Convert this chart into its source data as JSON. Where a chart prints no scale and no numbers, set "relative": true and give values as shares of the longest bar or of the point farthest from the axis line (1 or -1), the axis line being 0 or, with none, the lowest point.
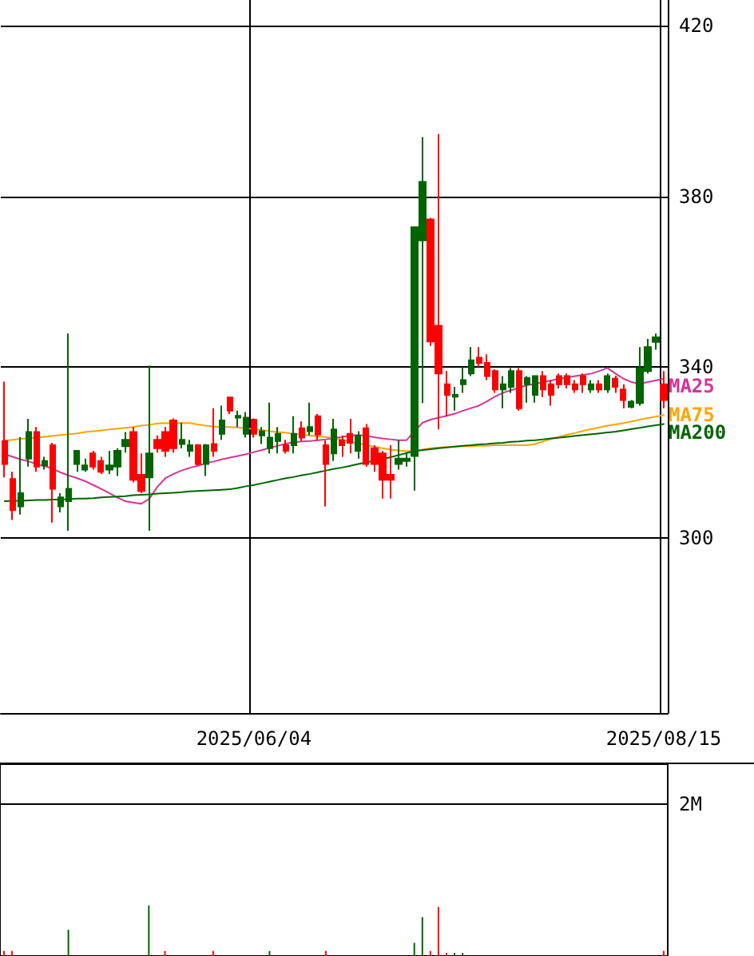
{
  "chart_data": [
    {
      "type": "candlestick",
      "categories": [
        null,
        null,
        null,
        null,
        null,
        null,
        null,
        null,
        null,
        null,
        null,
        null,
        null,
        null,
        null,
        null,
        null,
        null,
        null,
        null,
        null,
        null,
        null,
        null,
        null,
        null,
        null,
        null,
        null,
        null,
        null,
        "2025/06/04",
        null,
        null,
        null,
        null,
        null,
        null,
        null,
        null,
        null,
        null,
        null,
        null,
        null,
        null,
        null,
        null,
        null,
        null,
        null,
        null,
        null,
        null,
        null,
        null,
        null,
        null,
        null,
        null,
        null,
        null,
        null,
        null,
        null,
        null,
        null,
        null,
        null,
        null,
        null,
        null,
        null,
        null,
        null,
        null,
        null,
        null,
        null,
        null,
        null,
        null,
        "2025/08/15"
      ],
      "ohlc": [
        [
          322.7,
          336.6,
          314.2,
          317.3
        ],
        [
          313.8,
          315.5,
          304.2,
          306.5
        ],
        [
          307.4,
          323.6,
          305.5,
          310.5
        ],
        [
          318.6,
          327.9,
          316.7,
          324.8
        ],
        [
          324.8,
          326,
          315.5,
          316.7
        ],
        [
          317,
          319,
          316,
          318
        ],
        [
          321.7,
          322.3,
          303.6,
          311.5
        ],
        [
          307.4,
          310.5,
          306,
          309.5
        ],
        [
          308.6,
          347.9,
          301.7,
          311.5
        ],
        [
          317.3,
          320.6,
          315.5,
          320.4
        ],
        [
          316,
          318.6,
          315.5,
          317
        ],
        [
          319.8,
          320.4,
          316,
          316.7
        ],
        [
          318,
          319,
          315,
          315.5
        ],
        [
          316,
          320.4,
          315,
          317
        ],
        [
          316.7,
          321,
          314.5,
          320.4
        ],
        [
          321.5,
          324.8,
          320,
          323
        ],
        [
          324.8,
          326,
          313,
          313.6
        ],
        [
          314.8,
          319.8,
          310.5,
          311
        ],
        [
          314.2,
          340.4,
          301.7,
          319.8
        ],
        [
          323,
          324,
          320,
          321
        ],
        [
          324.8,
          326,
          319,
          320.4
        ],
        [
          327.5,
          328,
          320,
          321
        ],
        [
          322,
          327,
          321,
          323
        ],
        [
          320.4,
          323,
          319,
          321.7
        ],
        [
          321.7,
          322,
          317,
          317.3
        ],
        [
          317.3,
          322,
          314.5,
          321.7
        ],
        [
          322,
          330.4,
          319,
          320.4
        ],
        [
          324.4,
          331,
          323,
          327.5
        ],
        [
          332.9,
          333,
          329,
          329.8
        ],
        [
          328.2,
          329.8,
          326,
          328.6
        ],
        [
          324.4,
          329.5,
          323.5,
          328.2
        ],
        [
          327.7,
          328,
          323.5,
          324.4
        ],
        [
          324,
          326,
          322,
          325
        ],
        [
          321,
          331.7,
          319.8,
          323.5
        ],
        [
          322.7,
          326,
          319.8,
          324.4
        ],
        [
          321.7,
          323,
          319.8,
          320.4
        ],
        [
          321.7,
          328.5,
          319.8,
          324.4
        ],
        [
          325.7,
          327.3,
          322.7,
          323.5
        ],
        [
          325,
          331.7,
          324,
          326
        ],
        [
          328.5,
          329,
          323,
          324.2
        ],
        [
          321.7,
          322.9,
          307.4,
          317.3
        ],
        [
          319.8,
          327.9,
          318,
          325.4
        ],
        [
          322.9,
          324,
          319,
          321.7
        ],
        [
          324.4,
          327.9,
          319.8,
          322.3
        ],
        [
          320.4,
          325,
          318.6,
          323.9
        ],
        [
          325.7,
          326.7,
          316.7,
          317.3
        ],
        [
          321,
          321.7,
          315.5,
          317.3
        ],
        [
          319.8,
          320.4,
          309.2,
          313.6
        ],
        [
          314.8,
          321.7,
          309.2,
          313.6
        ],
        [
          317.3,
          322.9,
          316,
          318.6
        ],
        [
          318,
          319.8,
          316.7,
          318.6
        ],
        [
          319.2,
          372.8,
          311.1,
          372.8
        ],
        [
          369.7,
          393.9,
          331.6,
          383.4
        ],
        [
          374.6,
          375,
          345,
          346
        ],
        [
          349.7,
          394.6,
          325.4,
          338.5
        ],
        [
          336,
          339.1,
          328.5,
          333.5
        ],
        [
          333.1,
          335.4,
          329.8,
          333.5
        ],
        [
          336,
          340,
          334,
          337
        ],
        [
          338.5,
          344.7,
          337.9,
          341.6
        ],
        [
          342.2,
          344.7,
          340,
          341
        ],
        [
          341,
          343,
          337,
          337.9
        ],
        [
          339.1,
          339.5,
          334,
          334.8
        ],
        [
          334.8,
          337.9,
          330.4,
          336
        ],
        [
          335.4,
          339.8,
          334,
          339.1
        ],
        [
          339.1,
          339.8,
          329.8,
          330.4
        ],
        [
          336,
          337.9,
          331.7,
          337.5
        ],
        [
          333.5,
          338,
          331.7,
          337.9
        ],
        [
          337.9,
          339.1,
          333,
          334.8
        ],
        [
          336,
          337,
          331,
          333.5
        ],
        [
          337.9,
          338.5,
          335,
          336
        ],
        [
          337.9,
          338.5,
          335,
          336
        ],
        [
          336,
          337,
          334,
          334.8
        ],
        [
          337.9,
          338.5,
          334,
          336
        ],
        [
          334.8,
          337,
          334,
          336
        ],
        [
          336,
          337,
          334,
          334.8
        ],
        [
          334.8,
          338.5,
          334,
          337.9
        ],
        [
          337.3,
          338,
          334,
          335.4
        ],
        [
          334.8,
          336,
          330.4,
          332.3
        ],
        [
          330.7,
          332.3,
          330.4,
          331.9
        ],
        [
          331.6,
          344.7,
          331,
          339.8
        ],
        [
          339.1,
          346.6,
          338.5,
          344.7
        ],
        [
          345.9,
          347.9,
          344.1,
          347
        ],
        [
          336,
          339.1,
          330.4,
          332.3
        ]
      ],
      "colors": [
        "#ff0000",
        "#ff0000",
        "#006400",
        "#006400",
        "#ff0000",
        "#006400",
        "#ff0000",
        "#006400",
        "#006400",
        "#006400",
        "#006400",
        "#ff0000",
        "#ff0000",
        "#006400",
        "#006400",
        "#006400",
        "#ff0000",
        "#ff0000",
        "#006400",
        "#ff0000",
        "#ff0000",
        "#ff0000",
        "#006400",
        "#006400",
        "#ff0000",
        "#006400",
        "#ff0000",
        "#006400",
        "#ff0000",
        "#006400",
        "#006400",
        "#ff0000",
        "#006400",
        "#006400",
        "#006400",
        "#ff0000",
        "#006400",
        "#ff0000",
        "#006400",
        "#ff0000",
        "#ff0000",
        "#006400",
        "#ff0000",
        "#ff0000",
        "#006400",
        "#ff0000",
        "#ff0000",
        "#ff0000",
        "#ff0000",
        "#006400",
        "#006400",
        "#006400",
        "#006400",
        "#ff0000",
        "#ff0000",
        "#ff0000",
        "#006400",
        "#006400",
        "#006400",
        "#ff0000",
        "#ff0000",
        "#ff0000",
        "#006400",
        "#006400",
        "#ff0000",
        "#006400",
        "#006400",
        "#ff0000",
        "#ff0000",
        "#ff0000",
        "#ff0000",
        "#ff0000",
        "#ff0000",
        "#006400",
        "#ff0000",
        "#006400",
        "#ff0000",
        "#ff0000",
        "#006400",
        "#006400",
        "#006400",
        "#006400",
        "#ff0000"
      ],
      "series": [
        {
          "type": "line",
          "name": "MA25",
          "color": "#d63399",
          "values": [
            319.6,
            319,
            318.4,
            317.9,
            317.3,
            316.8,
            316.2,
            315.3,
            314.6,
            314,
            313.3,
            312.4,
            311.5,
            310.5,
            309.5,
            308.6,
            308.3,
            308,
            309.2,
            312,
            314,
            315,
            315.8,
            316.4,
            316.9,
            317.5,
            317.9,
            318.4,
            318.8,
            319.2,
            319.6,
            320.1,
            320.6,
            321.1,
            321.6,
            322.1,
            322.4,
            322.6,
            322.7,
            322.9,
            323.1,
            323.4,
            323.7,
            324,
            324.1,
            323.9,
            323.6,
            323.3,
            323.1,
            322.9,
            322.9,
            325,
            327,
            327.7,
            328.2,
            328.6,
            329.1,
            329.8,
            330.4,
            331,
            332,
            333.1,
            334,
            334.6,
            335.2,
            335.8,
            336.1,
            336.5,
            336.9,
            337.3,
            337.6,
            337.9,
            338.2,
            338.5,
            339.1,
            339.8,
            338.5,
            337.3,
            336.5,
            336.1,
            336.5,
            336.9,
            337.3
          ]
        },
        {
          "type": "line",
          "name": "MA75",
          "color": "#ffa500",
          "values": [
            322.8,
            323,
            323.2,
            323.3,
            323.5,
            323.7,
            323.9,
            324.1,
            324.3,
            324.5,
            324.8,
            325,
            325.2,
            325.4,
            325.6,
            325.8,
            326,
            326.3,
            326.5,
            326.8,
            326.9,
            326.9,
            326.9,
            326.9,
            326.6,
            326.3,
            326.1,
            326,
            326,
            325.9,
            325.7,
            325.5,
            325.3,
            325,
            324.8,
            324.6,
            324.4,
            324.2,
            324,
            323.8,
            323.6,
            323.4,
            323,
            322.5,
            322.1,
            321.8,
            321.4,
            321,
            320.7,
            320.5,
            320.3,
            320.4,
            320.7,
            321,
            321.2,
            321.3,
            321.4,
            321.5,
            321.5,
            321.6,
            321.6,
            321.7,
            321.7,
            321.7,
            321.7,
            321.7,
            322,
            322.6,
            323.2,
            323.7,
            324.2,
            324.6,
            325.1,
            325.5,
            325.9,
            326.3,
            326.6,
            326.9,
            327.3,
            327.7,
            328.1,
            328.4,
            328.8
          ]
        },
        {
          "type": "line",
          "name": "MA200",
          "color": "#006400",
          "values": [
            308.6,
            308.7,
            308.7,
            308.8,
            308.9,
            308.9,
            309,
            309,
            309.1,
            309.2,
            309.2,
            309.3,
            309.5,
            309.6,
            309.7,
            309.8,
            310,
            310.1,
            310.2,
            310.4,
            310.5,
            310.6,
            310.7,
            310.9,
            311,
            311.1,
            311.2,
            311.3,
            311.4,
            311.7,
            312.1,
            312.4,
            312.8,
            313.2,
            313.6,
            314,
            314.3,
            314.7,
            315,
            315.4,
            315.8,
            316.2,
            316.5,
            316.9,
            317.3,
            317.7,
            318.1,
            318.5,
            318.9,
            319.4,
            319.9,
            320.3,
            320.6,
            320.8,
            321,
            321.2,
            321.4,
            321.6,
            321.7,
            321.9,
            322,
            322.2,
            322.3,
            322.5,
            322.6,
            322.8,
            322.9,
            323.1,
            323.3,
            323.5,
            323.7,
            323.9,
            324.1,
            324.3,
            324.5,
            324.7,
            324.9,
            325.2,
            325.5,
            325.8,
            326.1,
            326.4,
            326.7
          ]
        }
      ],
      "ylim": [
        259,
        426
      ],
      "yticks": [
        300,
        340,
        380,
        420
      ],
      "grid": true
    },
    {
      "type": "bar",
      "relative": true,
      "categories": [
        null,
        null,
        null,
        null,
        null,
        null,
        null,
        null,
        null,
        null,
        null,
        null,
        null,
        null,
        null,
        null,
        null,
        null,
        null,
        null,
        null,
        null,
        null,
        null,
        null,
        null,
        null,
        null,
        null,
        null,
        null,
        null,
        null,
        null,
        null,
        null,
        null,
        null,
        null,
        null,
        null,
        null,
        null,
        null,
        null,
        null,
        null,
        null,
        null,
        null,
        null,
        null,
        null,
        null,
        null,
        null,
        null,
        null,
        null,
        null,
        null,
        null,
        null,
        null,
        null,
        null,
        null,
        null,
        null,
        null,
        null,
        null,
        null,
        null,
        null,
        null,
        null,
        null,
        null,
        null,
        null,
        null,
        null
      ],
      "values": [
        0.1,
        0.1,
        null,
        null,
        null,
        null,
        null,
        null,
        0.52,
        null,
        null,
        null,
        null,
        null,
        null,
        null,
        null,
        null,
        1,
        null,
        0.1,
        null,
        null,
        null,
        null,
        null,
        0.1,
        null,
        null,
        null,
        null,
        null,
        null,
        0.1,
        null,
        null,
        null,
        null,
        null,
        null,
        0.1,
        null,
        null,
        null,
        null,
        null,
        null,
        null,
        null,
        null,
        null,
        0.26,
        0.77,
        0.1,
        0.97,
        0.06,
        0.06,
        0.06,
        null,
        null,
        null,
        null,
        null,
        null,
        null,
        null,
        null,
        null,
        null,
        null,
        null,
        null,
        null,
        null,
        null,
        null,
        null,
        null,
        null,
        null,
        null,
        null,
        0.1
      ],
      "colors": [
        "#ff0000",
        "#ff0000",
        null,
        null,
        null,
        null,
        null,
        null,
        "#006400",
        null,
        null,
        null,
        null,
        null,
        null,
        null,
        null,
        null,
        "#006400",
        null,
        "#ff0000",
        null,
        null,
        null,
        null,
        null,
        "#ff0000",
        null,
        null,
        null,
        null,
        null,
        null,
        "#006400",
        null,
        null,
        null,
        null,
        null,
        null,
        "#ff0000",
        null,
        null,
        null,
        null,
        null,
        null,
        null,
        null,
        null,
        null,
        "#006400",
        "#006400",
        "#ff0000",
        "#ff0000",
        "#ff0000",
        "#006400",
        "#006400",
        null,
        null,
        null,
        null,
        null,
        null,
        null,
        null,
        null,
        null,
        null,
        null,
        null,
        null,
        null,
        null,
        null,
        null,
        null,
        null,
        null,
        null,
        null,
        null,
        "#ff0000"
      ],
      "annotations": [
        "2M"
      ]
    }
  ]
}
